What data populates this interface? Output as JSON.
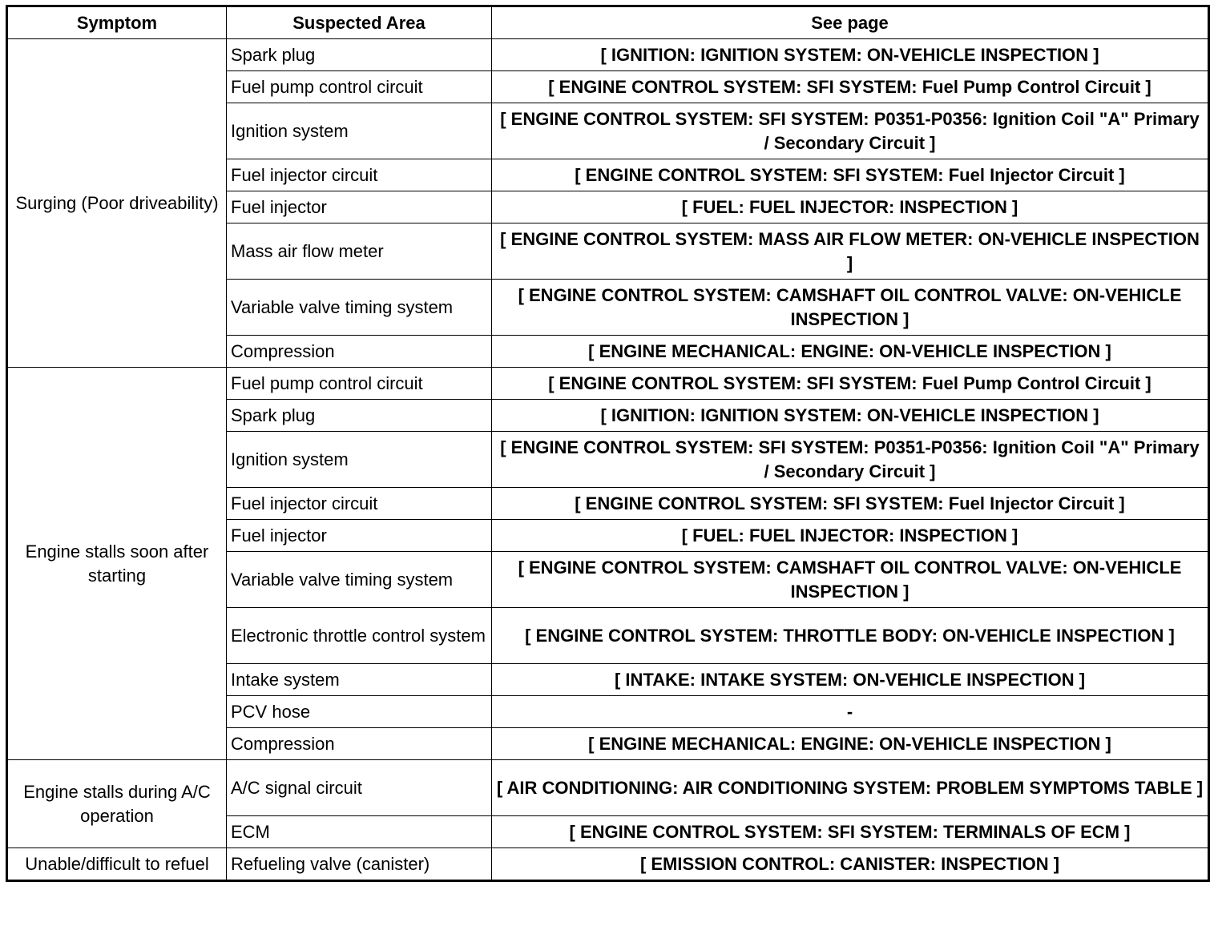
{
  "headers": [
    "Symptom",
    "Suspected Area",
    "See page"
  ],
  "groups": [
    {
      "symptom": "Surging (Poor driveability)",
      "rows": [
        {
          "area": "Spark plug",
          "page": "[ IGNITION: IGNITION SYSTEM: ON-VEHICLE INSPECTION ]"
        },
        {
          "area": "Fuel pump control circuit",
          "page": "[ ENGINE CONTROL SYSTEM: SFI SYSTEM: Fuel Pump Control Circuit ]"
        },
        {
          "area": "Ignition system",
          "page": "[ ENGINE CONTROL SYSTEM: SFI SYSTEM: P0351-P0356: Ignition Coil \"A\" Primary / Secondary Circuit ]"
        },
        {
          "area": "Fuel injector circuit",
          "page": "[ ENGINE CONTROL SYSTEM: SFI SYSTEM: Fuel Injector Circuit ]"
        },
        {
          "area": "Fuel injector",
          "page": "[ FUEL: FUEL INJECTOR: INSPECTION ]"
        },
        {
          "area": "Mass air flow meter",
          "page": "[ ENGINE CONTROL SYSTEM: MASS AIR FLOW METER: ON-VEHICLE INSPECTION ]"
        },
        {
          "area": "Variable valve timing system",
          "page": "[ ENGINE CONTROL SYSTEM: CAMSHAFT OIL CONTROL VALVE: ON-VEHICLE INSPECTION ]"
        },
        {
          "area": "Compression",
          "page": "[ ENGINE MECHANICAL: ENGINE: ON-VEHICLE INSPECTION ]"
        }
      ]
    },
    {
      "symptom": "Engine stalls soon after starting",
      "rows": [
        {
          "area": "Fuel pump control circuit",
          "page": "[ ENGINE CONTROL SYSTEM: SFI SYSTEM: Fuel Pump Control Circuit ]"
        },
        {
          "area": "Spark plug",
          "page": "[ IGNITION: IGNITION SYSTEM: ON-VEHICLE INSPECTION ]"
        },
        {
          "area": "Ignition system",
          "page": "[ ENGINE CONTROL SYSTEM: SFI SYSTEM: P0351-P0356: Ignition Coil \"A\" Primary / Secondary Circuit ]"
        },
        {
          "area": "Fuel injector circuit",
          "page": "[ ENGINE CONTROL SYSTEM: SFI SYSTEM: Fuel Injector Circuit ]"
        },
        {
          "area": "Fuel injector",
          "page": "[ FUEL: FUEL INJECTOR: INSPECTION ]"
        },
        {
          "area": "Variable valve timing system",
          "page": "[ ENGINE CONTROL SYSTEM: CAMSHAFT OIL CONTROL VALVE: ON-VEHICLE INSPECTION ]"
        },
        {
          "area": "Electronic throttle control system",
          "page": "[ ENGINE CONTROL SYSTEM: THROTTLE BODY: ON-VEHICLE INSPECTION ]"
        },
        {
          "area": "Intake system",
          "page": "[ INTAKE: INTAKE SYSTEM: ON-VEHICLE INSPECTION ]"
        },
        {
          "area": "PCV hose",
          "page": "-"
        },
        {
          "area": "Compression",
          "page": "[ ENGINE MECHANICAL: ENGINE: ON-VEHICLE INSPECTION ]"
        }
      ]
    },
    {
      "symptom": "Engine stalls during A/C operation",
      "rows": [
        {
          "area": "A/C signal circuit",
          "page": "[ AIR CONDITIONING: AIR CONDITIONING SYSTEM: PROBLEM SYMPTOMS TABLE ]"
        },
        {
          "area": "ECM",
          "page": "[ ENGINE CONTROL SYSTEM: SFI SYSTEM: TERMINALS OF ECM ]"
        }
      ]
    },
    {
      "symptom": "Unable/difficult to refuel",
      "rows": [
        {
          "area": "Refueling valve (canister)",
          "page": "[ EMISSION CONTROL: CANISTER: INSPECTION ]"
        }
      ]
    }
  ]
}
